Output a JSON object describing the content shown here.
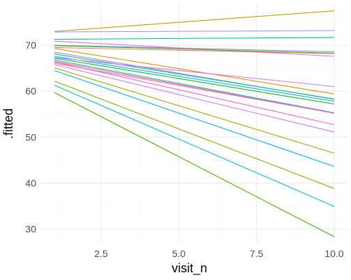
{
  "chart_data": {
    "type": "line",
    "xlabel": "visit_n",
    "ylabel": ".fitted",
    "xlim": [
      0.55,
      10.45
    ],
    "ylim": [
      26.9,
      79.1
    ],
    "x_ticks": [
      2.5,
      5.0,
      7.5,
      10.0
    ],
    "x_tick_labels": [
      "2.5",
      "5.0",
      "7.5",
      "10.0"
    ],
    "x_minor_ticks": [
      1.25,
      3.75,
      6.25,
      8.75
    ],
    "y_ticks": [
      30,
      40,
      50,
      60,
      70
    ],
    "y_tick_labels": [
      "30",
      "40",
      "50",
      "60",
      "70"
    ],
    "y_minor_ticks": [
      35,
      45,
      55,
      65,
      75
    ],
    "grid": true,
    "legend": "none",
    "series": [
      {
        "color": "#C49A00",
        "x": [
          1,
          10
        ],
        "y": [
          73.0,
          77.5
        ]
      },
      {
        "color": "#9590FF",
        "x": [
          1,
          10
        ],
        "y": [
          72.9,
          73.2
        ]
      },
      {
        "color": "#00C08B",
        "x": [
          1,
          10
        ],
        "y": [
          71.3,
          71.7
        ]
      },
      {
        "color": "#619CFF",
        "x": [
          1,
          10
        ],
        "y": [
          70.0,
          68.6
        ]
      },
      {
        "color": "#E76BF3",
        "x": [
          1,
          10
        ],
        "y": [
          70.9,
          67.6
        ]
      },
      {
        "color": "#F8766D",
        "x": [
          1,
          10
        ],
        "y": [
          69.5,
          68.2
        ]
      },
      {
        "color": "#53B400",
        "x": [
          1,
          10
        ],
        "y": [
          69.9,
          68.3
        ]
      },
      {
        "color": "#D89000",
        "x": [
          1,
          10
        ],
        "y": [
          69.3,
          59.4
        ]
      },
      {
        "color": "#A58AFF",
        "x": [
          1,
          10
        ],
        "y": [
          68.5,
          58.2
        ]
      },
      {
        "color": "#00BF7D",
        "x": [
          1,
          10
        ],
        "y": [
          68.1,
          58.3
        ]
      },
      {
        "color": "#00A9FF",
        "x": [
          1,
          10
        ],
        "y": [
          67.6,
          57.8
        ]
      },
      {
        "color": "#DB72FB",
        "x": [
          1,
          10
        ],
        "y": [
          67.3,
          61.0
        ]
      },
      {
        "color": "#00B81F",
        "x": [
          1,
          10
        ],
        "y": [
          67.2,
          57.2
        ]
      },
      {
        "color": "#00BCD8",
        "x": [
          1,
          10
        ],
        "y": [
          66.8,
          55.3
        ]
      },
      {
        "color": "#F8766D",
        "x": [
          1,
          10
        ],
        "y": [
          66.5,
          55.2
        ]
      },
      {
        "color": "#FF61C3",
        "x": [
          1,
          10
        ],
        "y": [
          66.1,
          55.2
        ]
      },
      {
        "color": "#FF62BC",
        "x": [
          1,
          10
        ],
        "y": [
          66.4,
          52.7
        ]
      },
      {
        "color": "#C77CFF",
        "x": [
          1,
          10
        ],
        "y": [
          65.8,
          51.1
        ]
      },
      {
        "color": "#A3A500",
        "x": [
          1,
          10
        ],
        "y": [
          65.1,
          46.5
        ]
      },
      {
        "color": "#00B0F6",
        "x": [
          1,
          10
        ],
        "y": [
          64.5,
          43.6
        ]
      },
      {
        "color": "#7CAE00",
        "x": [
          1,
          10
        ],
        "y": [
          62.2,
          38.8
        ]
      },
      {
        "color": "#00BFC4",
        "x": [
          1,
          10
        ],
        "y": [
          61.3,
          34.9
        ]
      },
      {
        "color": "#39B600",
        "x": [
          1,
          10
        ],
        "y": [
          59.7,
          28.3
        ]
      }
    ]
  }
}
